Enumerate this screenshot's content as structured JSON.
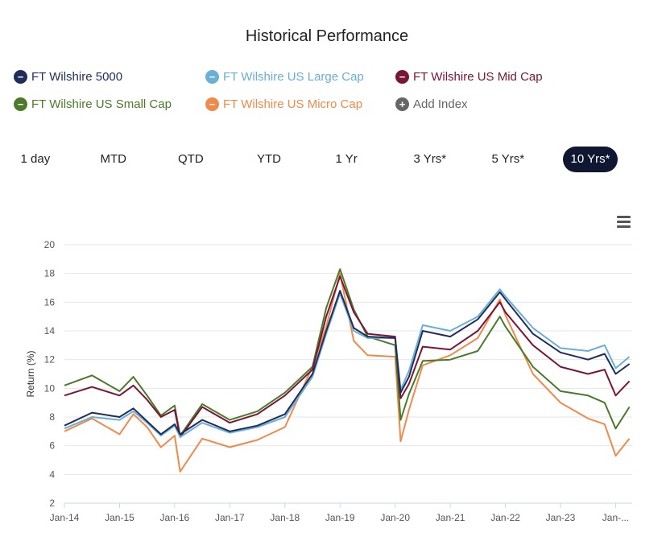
{
  "title": "Historical Performance",
  "legend": [
    {
      "label": "FT Wilshire 5000",
      "color": "#1f2d5c",
      "symbol": "−"
    },
    {
      "label": "FT Wilshire US Large Cap",
      "color": "#6aafd6",
      "symbol": "−"
    },
    {
      "label": "FT Wilshire US Mid Cap",
      "color": "#7a1538",
      "symbol": "−"
    },
    {
      "label": "FT Wilshire US Small Cap",
      "color": "#4a7a2a",
      "symbol": "−"
    },
    {
      "label": "FT Wilshire US Micro Cap",
      "color": "#f08a4b",
      "symbol": "−"
    },
    {
      "label": "Add Index",
      "color": "#666666",
      "symbol": "+"
    }
  ],
  "ranges": [
    {
      "label": "1 day",
      "active": false
    },
    {
      "label": "MTD",
      "active": false
    },
    {
      "label": "QTD",
      "active": false
    },
    {
      "label": "YTD",
      "active": false
    },
    {
      "label": "1 Yr",
      "active": false
    },
    {
      "label": "3 Yrs*",
      "active": false
    },
    {
      "label": "5 Yrs*",
      "active": false
    },
    {
      "label": "10 Yrs*",
      "active": true
    }
  ],
  "chart_data": {
    "type": "line",
    "ylabel": "Return (%)",
    "ylim": [
      2,
      20
    ],
    "yticks": [
      2,
      4,
      6,
      8,
      10,
      12,
      14,
      16,
      18,
      20
    ],
    "xticks": [
      "Jan-14",
      "Jan-15",
      "Jan-16",
      "Jan-17",
      "Jan-18",
      "Jan-19",
      "Jan-20",
      "Jan-21",
      "Jan-22",
      "Jan-23",
      "Jan-..."
    ],
    "x": [
      2014.0,
      2014.5,
      2015.0,
      2015.25,
      2015.5,
      2015.75,
      2016.0,
      2016.1,
      2016.5,
      2017.0,
      2017.5,
      2018.0,
      2018.5,
      2018.75,
      2019.0,
      2019.25,
      2019.5,
      2020.0,
      2020.1,
      2020.25,
      2020.5,
      2021.0,
      2021.5,
      2021.9,
      2022.0,
      2022.5,
      2023.0,
      2023.5,
      2023.8,
      2024.0,
      2024.25
    ],
    "series": [
      {
        "name": "FT Wilshire 5000",
        "color": "#1f2d5c",
        "values": [
          7.4,
          8.3,
          8.0,
          8.6,
          7.7,
          6.8,
          7.5,
          6.8,
          7.8,
          7.0,
          7.4,
          8.2,
          11.0,
          14.0,
          16.8,
          14.2,
          13.6,
          13.5,
          9.7,
          10.8,
          14.0,
          13.6,
          14.8,
          16.7,
          16.2,
          13.8,
          12.5,
          12.0,
          12.4,
          11.0,
          11.7
        ]
      },
      {
        "name": "FT Wilshire US Large Cap",
        "color": "#6aafd6",
        "values": [
          7.2,
          8.0,
          7.8,
          8.4,
          7.6,
          6.7,
          7.4,
          6.6,
          7.6,
          6.9,
          7.3,
          8.0,
          10.8,
          13.8,
          16.6,
          14.0,
          13.5,
          13.5,
          9.9,
          11.2,
          14.4,
          14.0,
          15.0,
          16.9,
          16.4,
          14.2,
          12.8,
          12.6,
          13.0,
          11.4,
          12.2
        ]
      },
      {
        "name": "FT Wilshire US Mid Cap",
        "color": "#7a1538",
        "values": [
          9.5,
          10.1,
          9.5,
          10.2,
          9.2,
          8.0,
          8.5,
          6.6,
          8.7,
          7.6,
          8.2,
          9.5,
          11.3,
          15.0,
          17.8,
          15.3,
          13.8,
          13.6,
          9.3,
          10.3,
          12.9,
          12.7,
          14.0,
          16.0,
          15.3,
          13.0,
          11.5,
          11.0,
          11.3,
          9.5,
          10.5
        ]
      },
      {
        "name": "FT Wilshire US Small Cap",
        "color": "#4a7a2a",
        "values": [
          10.2,
          10.9,
          9.8,
          10.8,
          9.5,
          8.1,
          8.8,
          6.7,
          8.9,
          7.8,
          8.4,
          9.7,
          11.5,
          15.6,
          18.3,
          15.5,
          13.6,
          13.0,
          7.8,
          9.6,
          11.9,
          12.0,
          12.6,
          15.0,
          14.3,
          11.5,
          9.8,
          9.5,
          9.0,
          7.2,
          8.7
        ]
      },
      {
        "name": "FT Wilshire US Micro Cap",
        "color": "#f08a4b",
        "values": [
          7.0,
          7.9,
          6.8,
          8.2,
          7.3,
          5.9,
          6.7,
          4.2,
          6.5,
          5.9,
          6.4,
          7.3,
          11.5,
          14.3,
          18.0,
          13.3,
          12.3,
          12.2,
          6.3,
          8.5,
          11.6,
          12.3,
          13.5,
          16.2,
          15.1,
          11.0,
          9.0,
          7.9,
          7.5,
          5.3,
          6.5
        ]
      }
    ]
  }
}
